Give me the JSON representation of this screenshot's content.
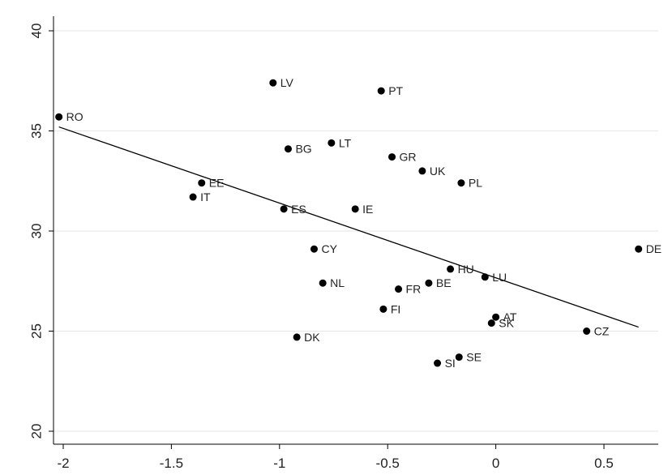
{
  "chart_data": {
    "type": "scatter",
    "title": "",
    "xlabel": "",
    "ylabel": "",
    "xlim": [
      -2.05,
      0.7
    ],
    "ylim": [
      20,
      40
    ],
    "x_ticks": [
      "-2",
      "-1.5",
      "-1",
      "-0.5",
      "0",
      "0.5"
    ],
    "y_ticks": [
      "20",
      "25",
      "30",
      "35",
      "40"
    ],
    "grid": true,
    "marker_color": "#000000",
    "points": [
      {
        "label": "RO",
        "x": -2.02,
        "y": 35.7
      },
      {
        "label": "LV",
        "x": -1.03,
        "y": 37.4
      },
      {
        "label": "PT",
        "x": -0.53,
        "y": 37.0
      },
      {
        "label": "BG",
        "x": -0.96,
        "y": 34.1
      },
      {
        "label": "LT",
        "x": -0.76,
        "y": 34.4
      },
      {
        "label": "GR",
        "x": -0.48,
        "y": 33.7
      },
      {
        "label": "UK",
        "x": -0.34,
        "y": 33.0
      },
      {
        "label": "PL",
        "x": -0.16,
        "y": 32.4
      },
      {
        "label": "EE",
        "x": -1.36,
        "y": 32.4
      },
      {
        "label": "IT",
        "x": -1.4,
        "y": 31.7
      },
      {
        "label": "ES",
        "x": -0.98,
        "y": 31.1
      },
      {
        "label": "IE",
        "x": -0.65,
        "y": 31.1
      },
      {
        "label": "CY",
        "x": -0.84,
        "y": 29.1
      },
      {
        "label": "DE",
        "x": 0.66,
        "y": 29.1
      },
      {
        "label": "HU",
        "x": -0.21,
        "y": 28.1
      },
      {
        "label": "LU",
        "x": -0.05,
        "y": 27.7
      },
      {
        "label": "NL",
        "x": -0.8,
        "y": 27.4
      },
      {
        "label": "BE",
        "x": -0.31,
        "y": 27.4
      },
      {
        "label": "FR",
        "x": -0.45,
        "y": 27.1
      },
      {
        "label": "FI",
        "x": -0.52,
        "y": 26.1
      },
      {
        "label": "AT",
        "x": 0.0,
        "y": 25.7
      },
      {
        "label": "SK",
        "x": -0.02,
        "y": 25.4
      },
      {
        "label": "CZ",
        "x": 0.42,
        "y": 25.0
      },
      {
        "label": "DK",
        "x": -0.92,
        "y": 24.7
      },
      {
        "label": "SE",
        "x": -0.17,
        "y": 23.7
      },
      {
        "label": "SI",
        "x": -0.27,
        "y": 23.4
      }
    ],
    "fit_line": {
      "x": [
        -2.02,
        0.66
      ],
      "y": [
        35.2,
        25.2
      ]
    }
  }
}
